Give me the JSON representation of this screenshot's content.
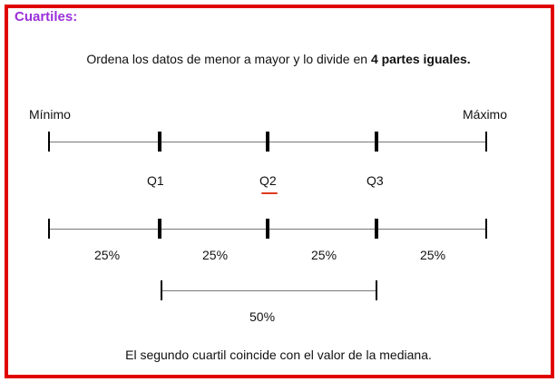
{
  "title": "Cuartiles:",
  "intro": {
    "text": "Ordena los datos de menor a mayor y lo divide en ",
    "bold": "4 partes iguales."
  },
  "line1": {
    "min_label": "Mínimo",
    "max_label": "Máximo"
  },
  "quartiles": {
    "q1": "Q1",
    "q2": "Q2",
    "q3": "Q3"
  },
  "segments": [
    "25%",
    "25%",
    "25%",
    "25%"
  ],
  "iqr_label": "50%",
  "footer": "El segundo cuartil coincide con el valor de la mediana.",
  "colors": {
    "border": "#e10000",
    "title": "#9b30d9",
    "underline": "#e0391f"
  }
}
